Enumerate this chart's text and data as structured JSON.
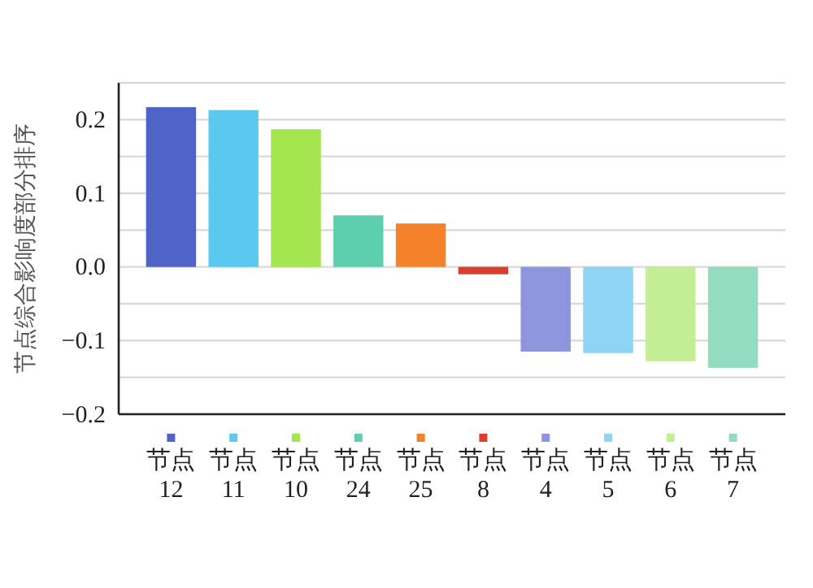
{
  "chart_data": {
    "type": "bar",
    "ylabel": "节点综合影响度部分排序",
    "categories": [
      "节点 12",
      "节点 11",
      "节点 10",
      "节点 24",
      "节点 25",
      "节点 8",
      "节点 4",
      "节点 5",
      "节点 6",
      "节点 7"
    ],
    "values": [
      0.217,
      0.213,
      0.187,
      0.07,
      0.059,
      -0.01,
      -0.115,
      -0.117,
      -0.128,
      -0.137
    ],
    "colors": [
      "#4f63c6",
      "#5bc8ef",
      "#a3e44f",
      "#5ecfae",
      "#f4822a",
      "#d9402b",
      "#8d95dd",
      "#8fd4f2",
      "#c3ee94",
      "#92dcc0"
    ],
    "ylim": [
      -0.2,
      0.25
    ],
    "yticks": [
      {
        "value": -0.2,
        "label": "−0.2"
      },
      {
        "value": -0.15,
        "label": null
      },
      {
        "value": -0.1,
        "label": "−0.1"
      },
      {
        "value": -0.05,
        "label": null
      },
      {
        "value": 0,
        "label": "0.0"
      },
      {
        "value": 0.05,
        "label": null
      },
      {
        "value": 0.1,
        "label": "0.1"
      },
      {
        "value": 0.15,
        "label": null
      },
      {
        "value": 0.2,
        "label": "0.2"
      },
      {
        "value": 0.25,
        "label": null
      }
    ],
    "grid": "y"
  }
}
